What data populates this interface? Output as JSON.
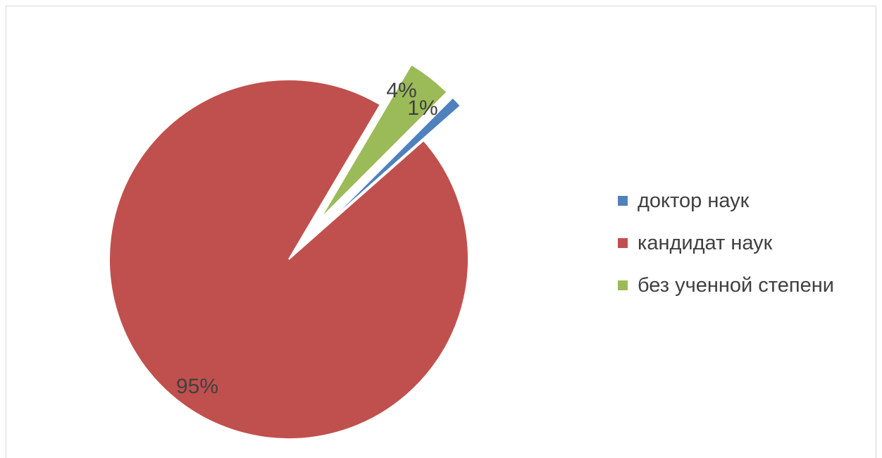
{
  "chart_data": {
    "type": "pie",
    "title": "",
    "categories": [
      "доктор наук",
      "кандидат наук",
      "без ученной степени"
    ],
    "values": [
      1,
      95,
      4
    ],
    "data_labels": [
      "1%",
      "95%",
      "4%"
    ],
    "colors": [
      "#4f81bd",
      "#c0504d",
      "#9bbb59"
    ],
    "exploded": [
      true,
      false,
      true
    ],
    "legend_position": "right"
  },
  "legend": {
    "items": [
      {
        "label": "доктор наук",
        "color": "#4f81bd"
      },
      {
        "label": "кандидат наук",
        "color": "#c0504d"
      },
      {
        "label": "без ученной степени",
        "color": "#9bbb59"
      }
    ]
  }
}
